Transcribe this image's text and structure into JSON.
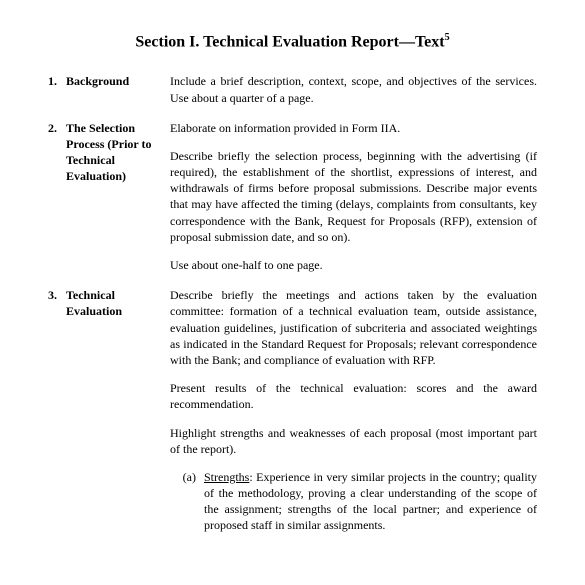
{
  "title_prefix": "Section I.  Technical Evaluation Report—Text",
  "title_super": "5",
  "items": [
    {
      "num": "1.",
      "label": "Background",
      "paras": [
        "Include a brief description, context, scope, and objectives of the services.  Use about a quarter of a page."
      ]
    },
    {
      "num": "2.",
      "label": "The Selection Process (Prior to Technical Evaluation)",
      "paras": [
        "Elaborate on information provided in Form IIA.",
        "Describe briefly the selection process, beginning with the advertising (if required), the establishment of the shortlist, expressions of interest, and withdrawals of firms before proposal submissions. Describe major events that may have affected the timing (delays, complaints from consultants, key correspondence with the Bank, Request for Proposals (RFP), extension of proposal submission date, and so on).",
        "Use about one-half to one page."
      ]
    },
    {
      "num": "3.",
      "label": "Technical Evaluation",
      "paras": [
        "Describe briefly the meetings and actions taken by the evaluation committee: formation of a technical evaluation team, outside assistance, evaluation guidelines, justification of subcriteria and associated weightings as indicated in the Standard Request for Proposals; relevant correspondence with the Bank; and compliance of evaluation with RFP.",
        "Present results of the technical evaluation: scores and the award recommendation.",
        "Highlight strengths and weaknesses of each proposal (most important part of the report)."
      ],
      "sub": {
        "marker": "(a)",
        "label": "Strengths",
        "text": ": Experience in very similar projects in the country; quality of the methodology, proving a clear understanding of the scope of the assignment; strengths of the local partner; and experience of proposed staff in similar assignments."
      }
    }
  ]
}
